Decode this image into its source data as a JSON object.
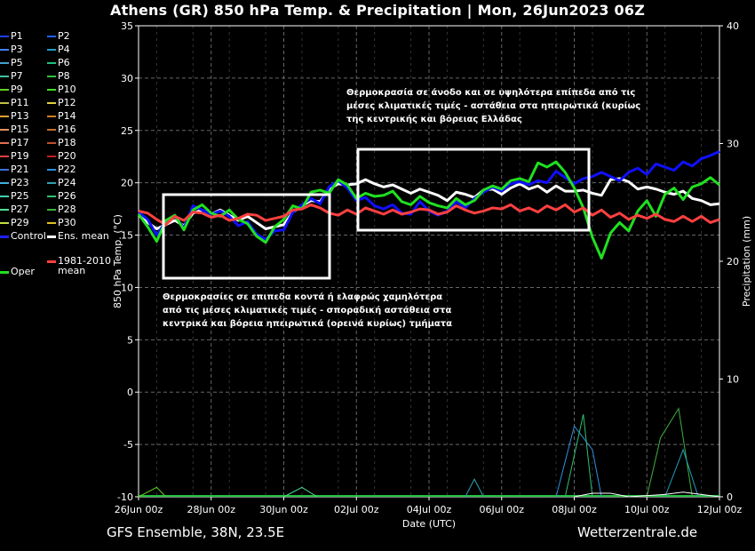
{
  "title": "Athens  (GR)  850 hPa Temp. & Precipitation | Mon, 26Jun2023 06Z",
  "footer_left": "GFS Ensemble, 38N, 23.5E",
  "footer_right": "Wetterzentrale.de",
  "annotation_high": "Θερμοκρασία σε άνοδο και σε υψηλότερα επίπεδα από τις\nμέσες κλιματικές τιμές - αστάθεια στα ηπειρωτικά (κυρίως\nτης κεντρικής και βόρειας Ελλάδας",
  "annotation_low": "Θερμοκρασίες σε επιπεδα κοντά ή ελαφρώς χαμηλότερα\nαπό τις μέσες κλιματικές τιμές - σποραδική αστάθεια στα\nκεντρικά και βόρεια ηπειρωτικά (ορεινά κυρίως) τμήματα",
  "legend": [
    {
      "label": "P1",
      "color": "#2040ff"
    },
    {
      "label": "P2",
      "color": "#2060ff"
    },
    {
      "label": "P3",
      "color": "#4080ff"
    },
    {
      "label": "P4",
      "color": "#20a0c0"
    },
    {
      "label": "P5",
      "color": "#40a0d0"
    },
    {
      "label": "P6",
      "color": "#20c080"
    },
    {
      "label": "P7",
      "color": "#40c0a0"
    },
    {
      "label": "P8",
      "color": "#30c040"
    },
    {
      "label": "P9",
      "color": "#60d020"
    },
    {
      "label": "P10",
      "color": "#40e020"
    },
    {
      "label": "P11",
      "color": "#c0c040"
    },
    {
      "label": "P12",
      "color": "#e0d040"
    },
    {
      "label": "P13",
      "color": "#e0a030"
    },
    {
      "label": "P14",
      "color": "#d08020"
    },
    {
      "label": "P15",
      "color": "#e09060"
    },
    {
      "label": "P16",
      "color": "#c07030"
    },
    {
      "label": "P17",
      "color": "#e07050"
    },
    {
      "label": "P18",
      "color": "#c05030"
    },
    {
      "label": "P19",
      "color": "#e04040"
    },
    {
      "label": "P20",
      "color": "#c02020"
    },
    {
      "label": "P21",
      "color": "#4070e0"
    },
    {
      "label": "P22",
      "color": "#3090e0"
    },
    {
      "label": "P23",
      "color": "#40b0e0"
    },
    {
      "label": "P24",
      "color": "#30a0b0"
    },
    {
      "label": "P25",
      "color": "#40d0b0"
    },
    {
      "label": "P26",
      "color": "#30c070"
    },
    {
      "label": "P27",
      "color": "#50e090"
    },
    {
      "label": "P28",
      "color": "#40b040"
    },
    {
      "label": "P29",
      "color": "#c0e040"
    },
    {
      "label": "P30",
      "color": "#e0c020"
    },
    {
      "label": "Control",
      "color": "#2020ff"
    },
    {
      "label": "Ens. mean",
      "color": "#ffffff"
    },
    {
      "label": "Oper",
      "color": "#20e020"
    },
    {
      "label": "1981-2010\nmean",
      "color": "#ff4040"
    }
  ],
  "chart_data": {
    "type": "line",
    "ylabel": "850 hPa Temp. (°C)",
    "y2label": "Precipitation (mm)",
    "xlabel": "Date (UTC)",
    "ylim": [
      -10,
      35
    ],
    "y2lim": [
      0,
      40
    ],
    "yticks": [
      -10,
      -5,
      0,
      5,
      10,
      15,
      20,
      25,
      30,
      35
    ],
    "y2ticks": [
      0,
      10,
      20,
      30,
      40
    ],
    "xlim_hours": [
      0,
      384
    ],
    "xticks": [
      {
        "label": "26Jun 00z",
        "h": 0
      },
      {
        "label": "28Jun 00z",
        "h": 48
      },
      {
        "label": "30Jun 00z",
        "h": 96
      },
      {
        "label": "02Jul 00z",
        "h": 144
      },
      {
        "label": "04Jul 00z",
        "h": 192
      },
      {
        "label": "06Jul 00z",
        "h": 240
      },
      {
        "label": "08Jul 00z",
        "h": 288
      },
      {
        "label": "10Jul 00z",
        "h": 336
      },
      {
        "label": "12Jul 00z",
        "h": 384
      }
    ],
    "grid": true,
    "series": [
      {
        "name": "Ens. mean",
        "color": "#ffffff",
        "width": 3,
        "values": [
          16.9,
          16.2,
          15.6,
          16.0,
          16.4,
          15.9,
          17.1,
          17.4,
          17.0,
          17.4,
          16.9,
          16.4,
          16.8,
          16.2,
          15.6,
          15.8,
          16.0,
          17.2,
          17.8,
          18.3,
          18.2,
          19.4,
          19.9,
          19.8,
          19.9,
          20.3,
          19.9,
          19.6,
          19.8,
          19.4,
          19.0,
          19.4,
          19.1,
          18.8,
          18.3,
          19.1,
          18.9,
          18.6,
          19.3,
          19.4,
          18.9,
          19.5,
          19.9,
          19.4,
          19.7,
          19.1,
          19.7,
          19.2,
          19.2,
          19.3,
          19.0,
          18.8,
          20.3,
          20.4,
          20.1,
          19.4,
          19.6,
          19.4,
          19.1,
          18.9,
          19.2,
          18.5,
          18.3,
          17.9,
          18.0
        ]
      },
      {
        "name": "Control",
        "color": "#1010ff",
        "width": 3,
        "values": [
          17.2,
          16.5,
          15.0,
          16.3,
          16.8,
          15.7,
          17.8,
          17.4,
          17.0,
          17.3,
          16.8,
          15.9,
          16.3,
          15.1,
          14.6,
          15.4,
          15.5,
          17.2,
          17.9,
          18.5,
          18.0,
          19.6,
          20.2,
          19.5,
          18.3,
          18.6,
          17.8,
          17.5,
          17.9,
          17.1,
          17.0,
          18.2,
          17.3,
          16.9,
          17.3,
          18.2,
          17.6,
          18.5,
          19.1,
          19.6,
          19.2,
          19.9,
          20.1,
          19.8,
          20.2,
          20.0,
          21.1,
          20.5,
          19.9,
          20.4,
          20.6,
          21.0,
          20.6,
          20.2,
          21.0,
          21.4,
          20.8,
          21.8,
          21.5,
          21.2,
          22.0,
          21.6,
          22.3,
          22.6,
          23.0
        ]
      },
      {
        "name": "Oper",
        "color": "#20e020",
        "width": 3,
        "values": [
          17.0,
          15.8,
          14.4,
          16.4,
          16.9,
          15.5,
          17.4,
          17.9,
          17.1,
          16.8,
          17.4,
          16.5,
          16.1,
          14.9,
          14.3,
          15.8,
          16.5,
          17.8,
          17.5,
          19.1,
          19.3,
          19.0,
          20.3,
          19.8,
          18.5,
          19.0,
          18.7,
          18.8,
          19.2,
          18.2,
          17.9,
          18.7,
          18.1,
          17.8,
          17.6,
          18.5,
          17.9,
          18.3,
          19.3,
          19.7,
          19.4,
          20.2,
          20.4,
          20.1,
          21.9,
          21.5,
          22.0,
          21.0,
          19.5,
          17.6,
          14.8,
          12.8,
          15.2,
          16.2,
          15.4,
          17.3,
          18.3,
          16.8,
          18.9,
          19.5,
          18.4,
          19.6,
          19.9,
          20.5,
          19.8
        ]
      },
      {
        "name": "1981-2010\nmean",
        "color": "#ff4040",
        "width": 3,
        "values": [
          17.3,
          17.1,
          16.5,
          16.0,
          16.8,
          16.4,
          17.2,
          17.1,
          16.7,
          16.9,
          16.4,
          16.6,
          17.0,
          16.9,
          16.4,
          16.6,
          16.8,
          17.4,
          17.5,
          17.9,
          17.6,
          17.1,
          16.9,
          17.4,
          17.0,
          17.6,
          17.3,
          17.0,
          17.4,
          17.0,
          17.2,
          17.5,
          17.4,
          17.0,
          17.2,
          17.8,
          17.4,
          17.1,
          17.3,
          17.6,
          17.5,
          17.9,
          17.3,
          17.6,
          17.2,
          17.8,
          17.4,
          17.9,
          17.2,
          17.6,
          16.9,
          17.4,
          16.7,
          17.1,
          16.5,
          16.9,
          16.6,
          17.0,
          16.5,
          16.3,
          16.8,
          16.3,
          16.8,
          16.2,
          16.5
        ]
      }
    ],
    "precipitation": [
      {
        "name": "P4",
        "color": "#3090e0",
        "points": [
          [
            276,
            0
          ],
          [
            288,
            6
          ],
          [
            300,
            4
          ],
          [
            306,
            0
          ]
        ]
      },
      {
        "name": "P24",
        "color": "#30c070",
        "points": [
          [
            282,
            0
          ],
          [
            294,
            7
          ],
          [
            300,
            0
          ]
        ]
      },
      {
        "name": "P28",
        "color": "#40b040",
        "points": [
          [
            336,
            0
          ],
          [
            345,
            5
          ],
          [
            357,
            7.5
          ],
          [
            366,
            0
          ]
        ]
      },
      {
        "name": "P29",
        "color": "#20a0c0",
        "points": [
          [
            348,
            0
          ],
          [
            360,
            4
          ],
          [
            370,
            0
          ]
        ]
      },
      {
        "name": "P22",
        "color": "#30a0b0",
        "points": [
          [
            216,
            0
          ],
          [
            222,
            1.5
          ],
          [
            228,
            0
          ]
        ]
      },
      {
        "name": "P9",
        "color": "#60d020",
        "points": [
          [
            0,
            0
          ],
          [
            6,
            0.4
          ],
          [
            12,
            0.8
          ],
          [
            18,
            0
          ]
        ]
      },
      {
        "name": "P27",
        "color": "#50e090",
        "points": [
          [
            96,
            0
          ],
          [
            108,
            0.8
          ],
          [
            118,
            0
          ]
        ]
      },
      {
        "name": "Ens. mean",
        "color": "#ffffff",
        "points": [
          [
            288,
            0
          ],
          [
            300,
            0.3
          ],
          [
            312,
            0.3
          ],
          [
            324,
            0
          ],
          [
            348,
            0.2
          ],
          [
            360,
            0.4
          ],
          [
            372,
            0.2
          ],
          [
            384,
            0
          ]
        ]
      }
    ]
  }
}
